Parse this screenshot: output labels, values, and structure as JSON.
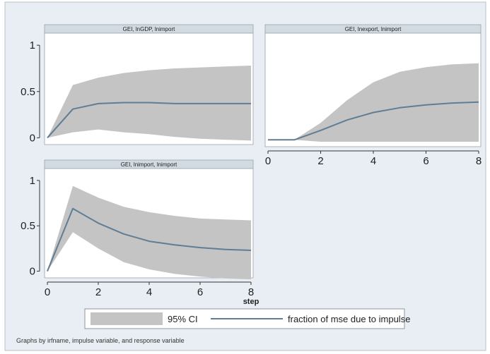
{
  "chart_data": {
    "type": "area",
    "x_ticks": [
      0,
      2,
      4,
      6,
      8
    ],
    "y_ticks": [
      0,
      0.5,
      1
    ],
    "xlim": [
      0,
      8
    ],
    "ylim": [
      -0.05,
      1.1
    ],
    "xlabel": "step",
    "panels": [
      {
        "title": "GEI, lnGDP, lnimport",
        "x": [
          0,
          1,
          2,
          3,
          4,
          5,
          6,
          7,
          8
        ],
        "fraction_mse": [
          0,
          0.31,
          0.37,
          0.38,
          0.38,
          0.37,
          0.37,
          0.37,
          0.37
        ],
        "ci_upper": [
          0,
          0.57,
          0.65,
          0.7,
          0.73,
          0.75,
          0.76,
          0.77,
          0.78
        ],
        "ci_lower": [
          0,
          0.06,
          0.09,
          0.06,
          0.04,
          0.01,
          -0.01,
          -0.02,
          -0.03
        ]
      },
      {
        "title": "GEI, lnexport, lnimport",
        "x": [
          0,
          1,
          2,
          3,
          4,
          5,
          6,
          7,
          8
        ],
        "fraction_mse": [
          0,
          0,
          0.1,
          0.21,
          0.29,
          0.34,
          0.37,
          0.39,
          0.4
        ],
        "ci_upper": [
          0,
          0,
          0.18,
          0.42,
          0.61,
          0.72,
          0.77,
          0.8,
          0.81
        ],
        "ci_lower": [
          0,
          0,
          -0.02,
          -0.02,
          -0.02,
          -0.02,
          -0.02,
          -0.02,
          -0.02
        ]
      },
      {
        "title": "GEI, lnimport, lnimport",
        "x": [
          0,
          1,
          2,
          3,
          4,
          5,
          6,
          7,
          8
        ],
        "fraction_mse": [
          0,
          0.69,
          0.53,
          0.41,
          0.33,
          0.29,
          0.26,
          0.24,
          0.23
        ],
        "ci_upper": [
          0,
          0.94,
          0.81,
          0.71,
          0.65,
          0.61,
          0.58,
          0.57,
          0.56
        ],
        "ci_lower": [
          0,
          0.43,
          0.25,
          0.1,
          0.02,
          -0.03,
          -0.06,
          -0.08,
          -0.09
        ]
      }
    ],
    "legend": {
      "ci_label": "95% CI",
      "line_label": "fraction of mse due to impulse",
      "position": "bottom"
    },
    "note": "Graphs by irfname, impulse variable, and response variable",
    "colors": {
      "ci_band": "#c4c4c4",
      "line": "#5f7d95",
      "background": "#e8eef3",
      "panel_header": "#d3dbe2"
    }
  }
}
